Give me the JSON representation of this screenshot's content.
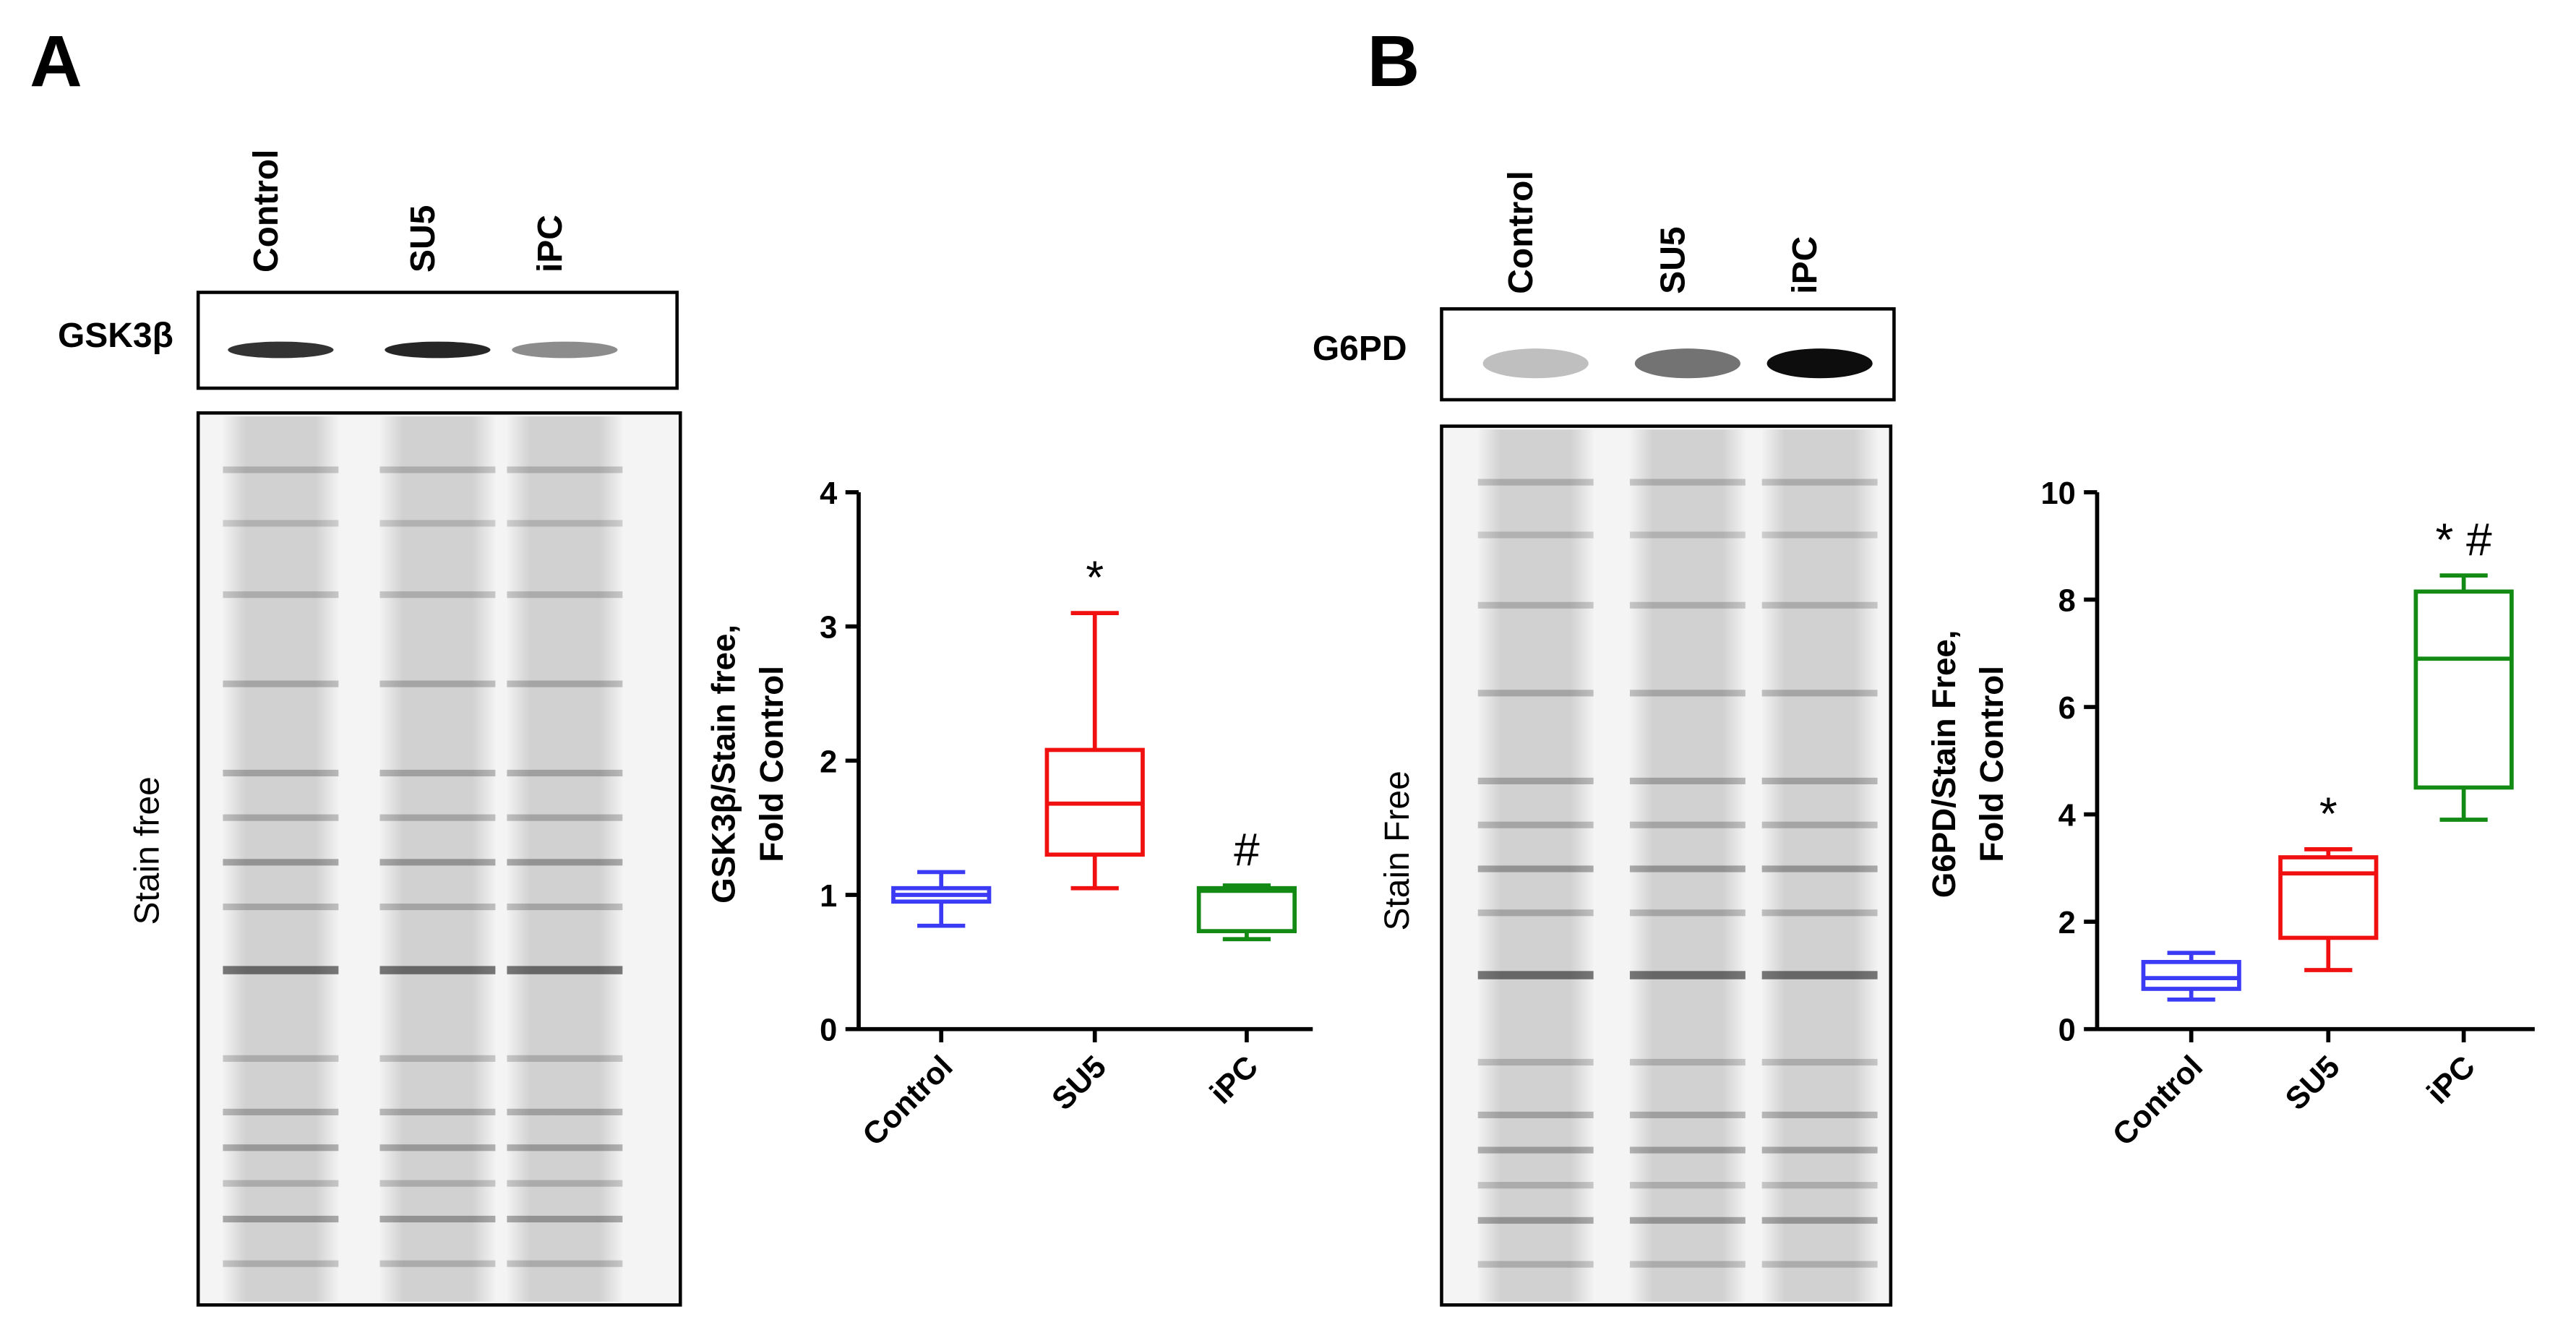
{
  "panels": [
    {
      "label": "A",
      "lanes": [
        "Control",
        "SU5",
        "iPC"
      ],
      "blot_label": "GSK3β",
      "stain_label": "Stain free"
    },
    {
      "label": "B",
      "lanes": [
        "Control",
        "SU5",
        "iPC"
      ],
      "blot_label": "G6PD",
      "stain_label": "Stain Free"
    }
  ],
  "chart_data": [
    {
      "type": "box",
      "y_label": [
        "GSK3β/Stain free,",
        "Fold Control"
      ],
      "categories": [
        "Control",
        "SU5",
        "iPC"
      ],
      "colors": [
        "#3b3bf5",
        "#f01010",
        "#138a13"
      ],
      "boxes": [
        {
          "min": 0.77,
          "q1": 0.95,
          "median": 1.0,
          "q3": 1.05,
          "max": 1.17
        },
        {
          "min": 1.05,
          "q1": 1.3,
          "median": 1.68,
          "q3": 2.08,
          "max": 3.1
        },
        {
          "min": 0.67,
          "q1": 0.73,
          "median": 1.03,
          "q3": 1.05,
          "max": 1.07
        }
      ],
      "annotations": [
        null,
        "*",
        "#"
      ],
      "ylim": [
        0,
        4
      ],
      "yticks": [
        0,
        1,
        2,
        3,
        4
      ]
    },
    {
      "type": "box",
      "y_label": [
        "G6PD/Stain Free,",
        "Fold Control"
      ],
      "categories": [
        "Control",
        "SU5",
        "iPC"
      ],
      "colors": [
        "#3b3bf5",
        "#f01010",
        "#138a13"
      ],
      "boxes": [
        {
          "min": 0.55,
          "q1": 0.75,
          "median": 0.95,
          "q3": 1.25,
          "max": 1.42
        },
        {
          "min": 1.1,
          "q1": 1.7,
          "median": 2.9,
          "q3": 3.2,
          "max": 3.35
        },
        {
          "min": 3.9,
          "q1": 4.5,
          "median": 6.9,
          "q3": 8.15,
          "max": 8.45
        }
      ],
      "annotations": [
        null,
        "*",
        "* #"
      ],
      "ylim": [
        0,
        10
      ],
      "yticks": [
        0,
        2,
        4,
        6,
        8,
        10
      ]
    }
  ]
}
